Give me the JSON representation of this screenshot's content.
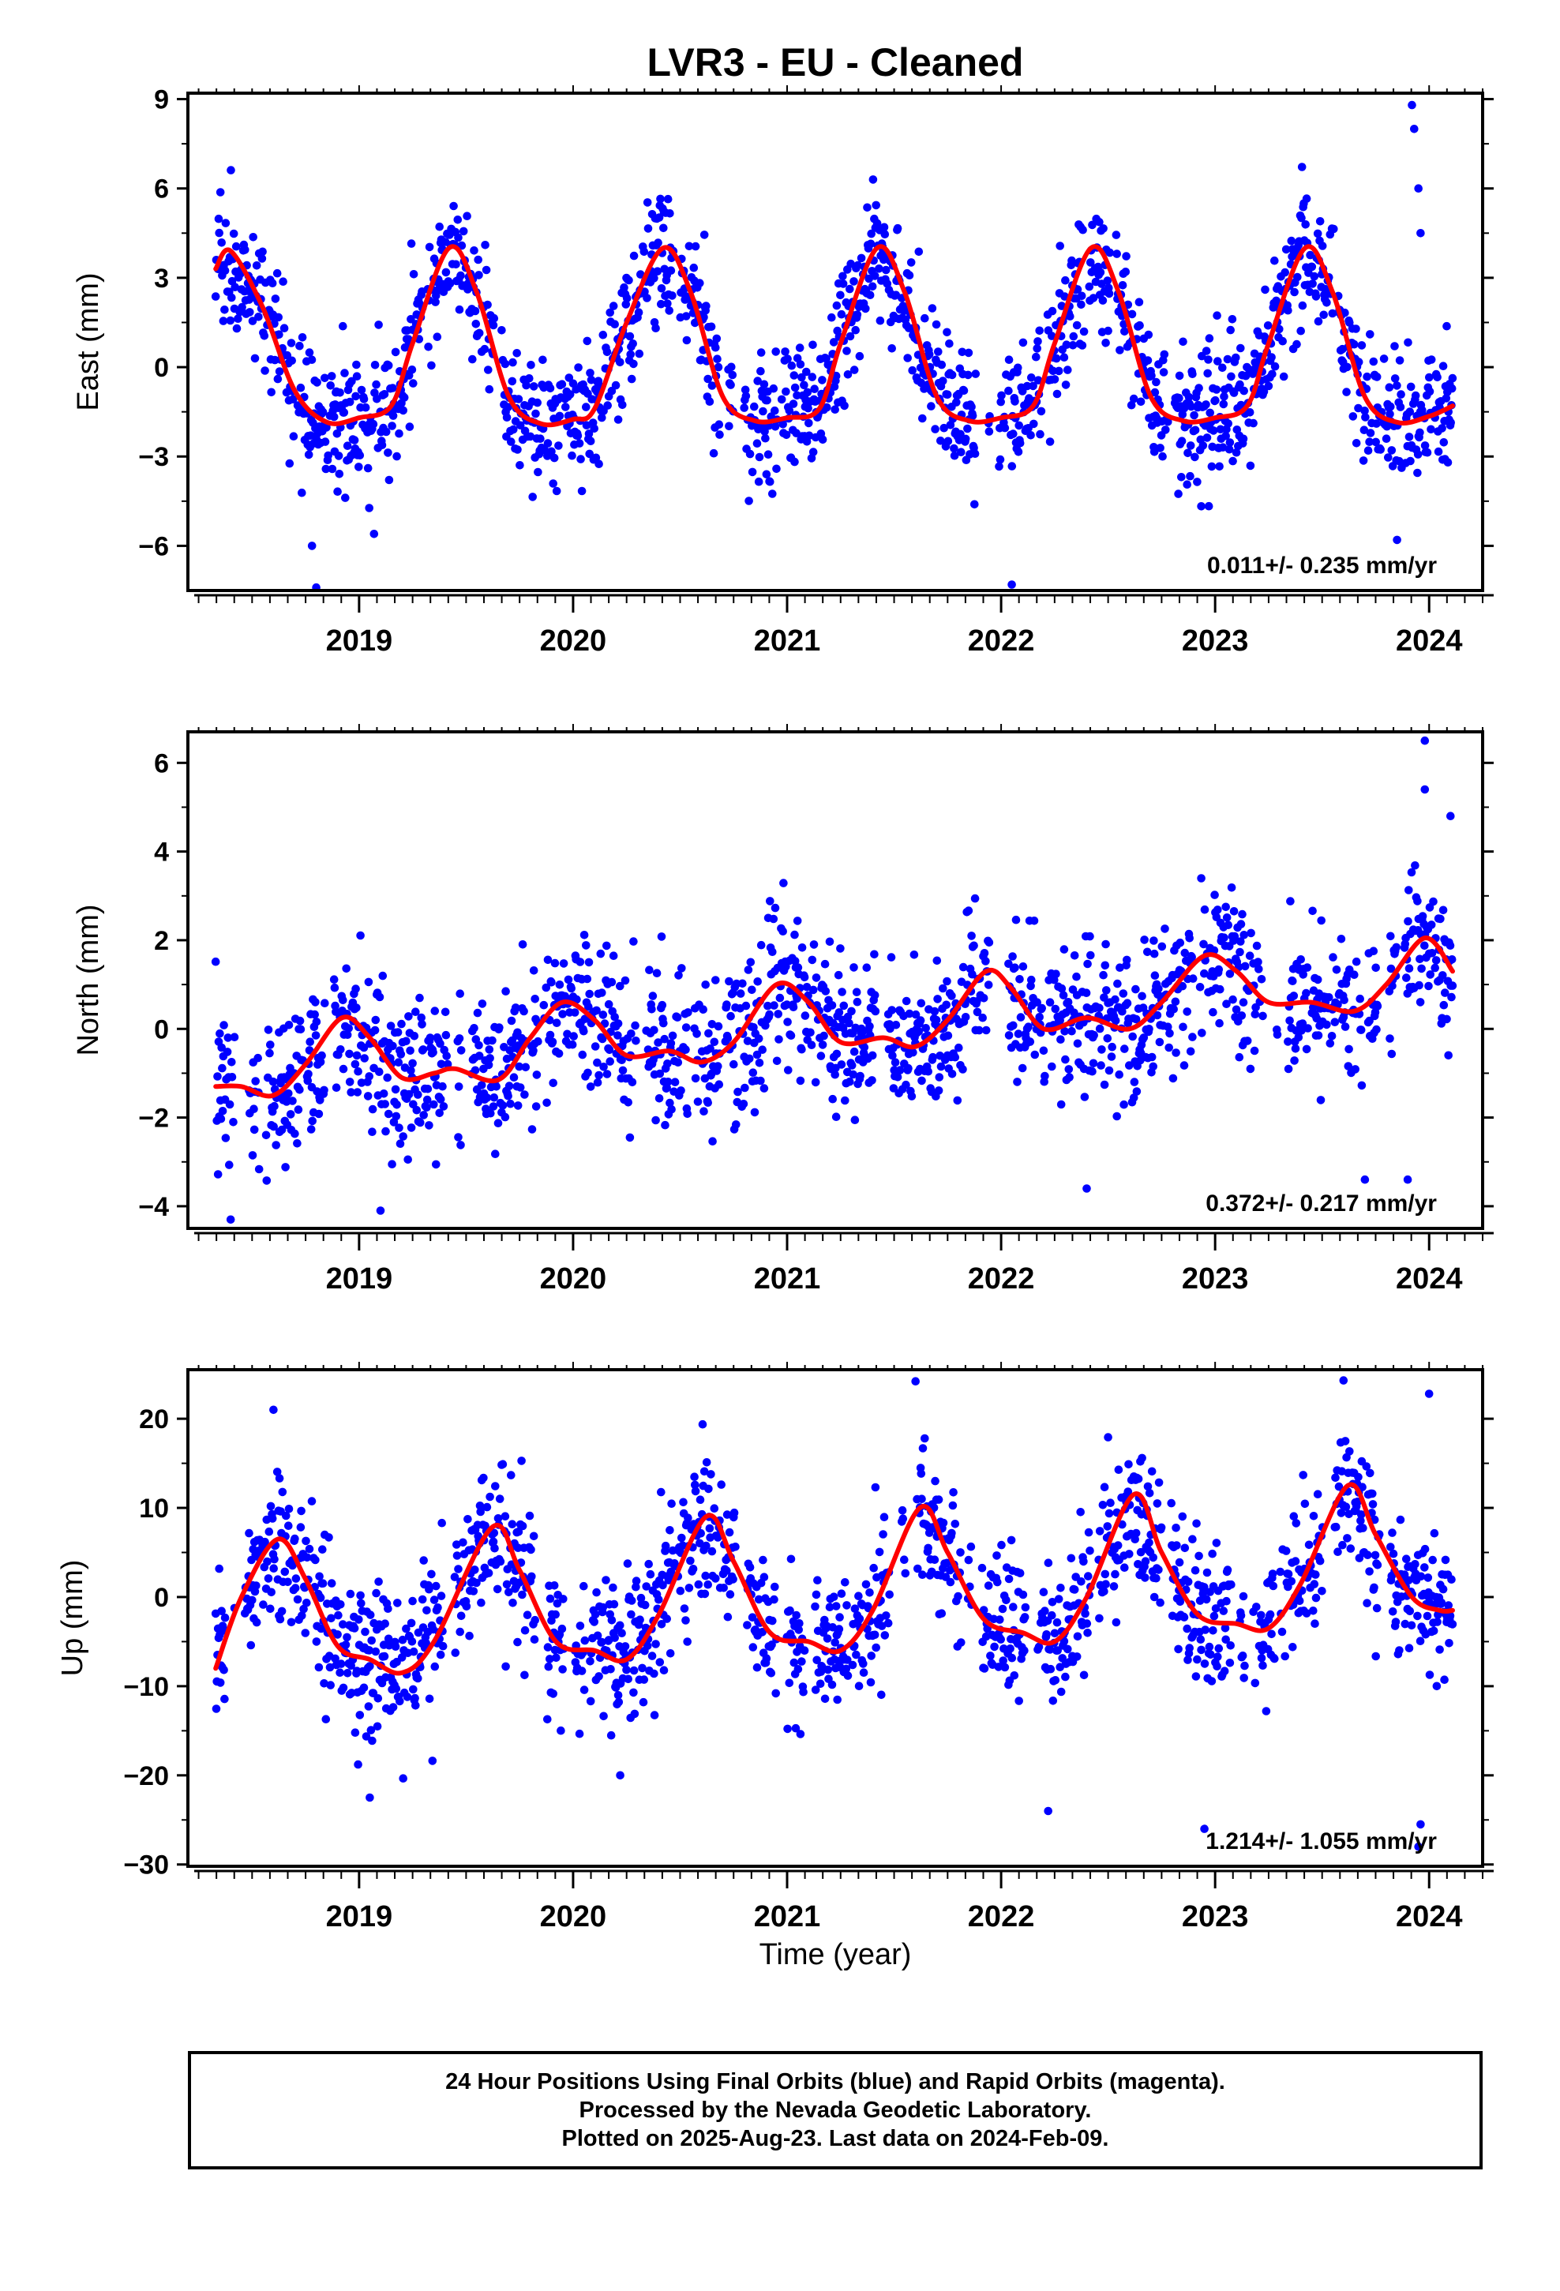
{
  "chart_data": {
    "type": "scatter",
    "title": "LVR3  - EU - Cleaned",
    "xlabel": "Time (year)",
    "xlim": [
      2018.2,
      2024.25
    ],
    "x_ticks": [
      2019,
      2020,
      2021,
      2022,
      2023,
      2024
    ],
    "data_start": 2018.33,
    "data_end": 2024.11,
    "marker_color": "#0000ff",
    "model_color": "#ff0000",
    "panels": [
      {
        "name": "east",
        "ylabel": "East (mm)",
        "ylim": [
          -7.5,
          9.2
        ],
        "y_ticks": [
          -6,
          -3,
          0,
          3,
          6,
          9
        ],
        "y_tick_labels": [
          "−6",
          "−3",
          "0",
          "3",
          "6",
          "9"
        ],
        "rate_label": "0.011+/- 0.235 mm/yr",
        "trend": 0.011,
        "base": 1.0,
        "annual_amplitude": 2.9,
        "annual_peak": 0.42,
        "semiannual_amplitude": 0.0,
        "semiannual_peak": 0.1,
        "noise_sd": 1.1,
        "model_curve": [
          [
            2018.33,
            3.3
          ],
          [
            2018.4,
            3.9
          ],
          [
            2018.55,
            2.0
          ],
          [
            2018.7,
            -0.8
          ],
          [
            2018.85,
            -1.85
          ],
          [
            2019.0,
            -1.7
          ],
          [
            2019.15,
            -1.3
          ],
          [
            2019.25,
            0.8
          ],
          [
            2019.42,
            4.0
          ],
          [
            2019.55,
            2.5
          ],
          [
            2019.7,
            -1.0
          ],
          [
            2019.85,
            -1.9
          ],
          [
            2020.0,
            -1.75
          ],
          [
            2020.1,
            -1.4
          ],
          [
            2020.25,
            1.5
          ],
          [
            2020.42,
            4.0
          ],
          [
            2020.55,
            2.5
          ],
          [
            2020.7,
            -1.0
          ],
          [
            2020.85,
            -1.8
          ],
          [
            2021.0,
            -1.7
          ],
          [
            2021.15,
            -1.4
          ],
          [
            2021.25,
            0.8
          ],
          [
            2021.42,
            4.0
          ],
          [
            2021.55,
            2.5
          ],
          [
            2021.7,
            -1.0
          ],
          [
            2021.85,
            -1.8
          ],
          [
            2022.0,
            -1.7
          ],
          [
            2022.15,
            -1.3
          ],
          [
            2022.25,
            0.8
          ],
          [
            2022.42,
            4.0
          ],
          [
            2022.55,
            2.5
          ],
          [
            2022.7,
            -1.0
          ],
          [
            2022.85,
            -1.8
          ],
          [
            2023.0,
            -1.7
          ],
          [
            2023.15,
            -1.3
          ],
          [
            2023.25,
            0.8
          ],
          [
            2023.42,
            4.0
          ],
          [
            2023.55,
            2.5
          ],
          [
            2023.7,
            -1.0
          ],
          [
            2023.85,
            -1.85
          ],
          [
            2024.0,
            -1.65
          ],
          [
            2024.11,
            -1.3
          ]
        ],
        "outliers": [
          [
            2023.92,
            8.8
          ],
          [
            2023.93,
            8.0
          ],
          [
            2023.95,
            6.0
          ],
          [
            2023.96,
            4.5
          ],
          [
            2022.05,
            -7.3
          ],
          [
            2018.8,
            -7.4
          ],
          [
            2023.85,
            -5.8
          ],
          [
            2018.78,
            -6.0
          ],
          [
            2019.07,
            -5.6
          ]
        ]
      },
      {
        "name": "north",
        "ylabel": "North (mm)",
        "ylim": [
          -4.5,
          6.7
        ],
        "y_ticks": [
          -4,
          -2,
          0,
          2,
          4,
          6
        ],
        "y_tick_labels": [
          "−4",
          "−2",
          "0",
          "2",
          "4",
          "6"
        ],
        "rate_label": "0.372+/- 0.217 mm/yr",
        "trend": 0.372,
        "base": -0.6,
        "annual_amplitude": 0.7,
        "annual_peak": 0.95,
        "semiannual_amplitude": 0.3,
        "semiannual_peak": 0.45,
        "noise_sd": 0.85,
        "model_curve": [
          [
            2018.33,
            -1.3
          ],
          [
            2018.45,
            -1.3
          ],
          [
            2018.6,
            -1.5
          ],
          [
            2018.75,
            -0.8
          ],
          [
            2018.92,
            0.25
          ],
          [
            2019.05,
            -0.2
          ],
          [
            2019.2,
            -1.1
          ],
          [
            2019.35,
            -1.0
          ],
          [
            2019.45,
            -0.9
          ],
          [
            2019.65,
            -1.15
          ],
          [
            2019.8,
            -0.2
          ],
          [
            2019.95,
            0.6
          ],
          [
            2020.1,
            0.2
          ],
          [
            2020.25,
            -0.6
          ],
          [
            2020.45,
            -0.5
          ],
          [
            2020.6,
            -0.75
          ],
          [
            2020.75,
            -0.3
          ],
          [
            2020.95,
            1.0
          ],
          [
            2021.1,
            0.6
          ],
          [
            2021.25,
            -0.3
          ],
          [
            2021.45,
            -0.2
          ],
          [
            2021.6,
            -0.4
          ],
          [
            2021.75,
            0.2
          ],
          [
            2021.93,
            1.3
          ],
          [
            2022.05,
            0.9
          ],
          [
            2022.2,
            0.0
          ],
          [
            2022.4,
            0.25
          ],
          [
            2022.6,
            0.0
          ],
          [
            2022.75,
            0.6
          ],
          [
            2022.95,
            1.65
          ],
          [
            2023.1,
            1.3
          ],
          [
            2023.25,
            0.6
          ],
          [
            2023.45,
            0.6
          ],
          [
            2023.65,
            0.4
          ],
          [
            2023.8,
            1.0
          ],
          [
            2023.98,
            2.05
          ],
          [
            2024.11,
            1.3
          ]
        ],
        "outliers": [
          [
            2023.98,
            6.5
          ],
          [
            2023.98,
            5.4
          ],
          [
            2024.1,
            4.8
          ],
          [
            2018.4,
            -4.3
          ],
          [
            2019.1,
            -4.1
          ],
          [
            2023.7,
            -3.4
          ],
          [
            2022.4,
            -3.6
          ],
          [
            2023.9,
            -3.4
          ]
        ]
      },
      {
        "name": "up",
        "ylabel": "Up (mm)",
        "ylim": [
          -30.2,
          25.5
        ],
        "y_ticks": [
          -30,
          -20,
          -10,
          0,
          10,
          20
        ],
        "y_tick_labels": [
          "−30",
          "−20",
          "−10",
          "0",
          "10",
          "20"
        ],
        "rate_label": "1.214+/- 1.055 mm/yr",
        "trend": 1.214,
        "base": -0.5,
        "annual_amplitude": 8.0,
        "annual_peak": 0.62,
        "semiannual_amplitude": 0.0,
        "semiannual_peak": 0.1,
        "noise_sd": 4.0,
        "model_curve": [
          [
            2018.33,
            -8.0
          ],
          [
            2018.45,
            0.0
          ],
          [
            2018.62,
            6.5
          ],
          [
            2018.75,
            2.0
          ],
          [
            2018.9,
            -5.5
          ],
          [
            2019.05,
            -7.0
          ],
          [
            2019.2,
            -8.5
          ],
          [
            2019.35,
            -5.0
          ],
          [
            2019.62,
            7.8
          ],
          [
            2019.75,
            3.0
          ],
          [
            2019.92,
            -5.0
          ],
          [
            2020.1,
            -6.0
          ],
          [
            2020.25,
            -7.0
          ],
          [
            2020.4,
            -2.0
          ],
          [
            2020.62,
            9.0
          ],
          [
            2020.75,
            4.0
          ],
          [
            2020.92,
            -4.0
          ],
          [
            2021.1,
            -5.0
          ],
          [
            2021.25,
            -6.0
          ],
          [
            2021.4,
            -1.5
          ],
          [
            2021.62,
            10.0
          ],
          [
            2021.75,
            5.0
          ],
          [
            2021.92,
            -2.5
          ],
          [
            2022.1,
            -4.0
          ],
          [
            2022.25,
            -5.0
          ],
          [
            2022.4,
            0.0
          ],
          [
            2022.62,
            11.5
          ],
          [
            2022.75,
            5.0
          ],
          [
            2022.92,
            -2.0
          ],
          [
            2023.1,
            -3.0
          ],
          [
            2023.25,
            -3.5
          ],
          [
            2023.4,
            1.5
          ],
          [
            2023.62,
            12.5
          ],
          [
            2023.75,
            7.0
          ],
          [
            2023.92,
            0.0
          ],
          [
            2024.05,
            -1.5
          ],
          [
            2024.11,
            -1.5
          ]
        ],
        "outliers": [
          [
            2023.6,
            24.3
          ],
          [
            2021.6,
            24.2
          ],
          [
            2018.6,
            21.0
          ],
          [
            2022.95,
            -26.0
          ],
          [
            2023.95,
            -28.0
          ],
          [
            2023.96,
            -25.5
          ],
          [
            2024.0,
            22.8
          ],
          [
            2022.22,
            -24.0
          ],
          [
            2019.05,
            -22.5
          ],
          [
            2020.22,
            -20.0
          ]
        ]
      }
    ]
  },
  "footer": {
    "line1": "24 Hour Positions Using Final Orbits (blue) and Rapid Orbits (magenta).",
    "line2": "Processed by the Nevada Geodetic Laboratory.",
    "line3": "Plotted on 2025-Aug-23. Last data on 2024-Feb-09."
  }
}
